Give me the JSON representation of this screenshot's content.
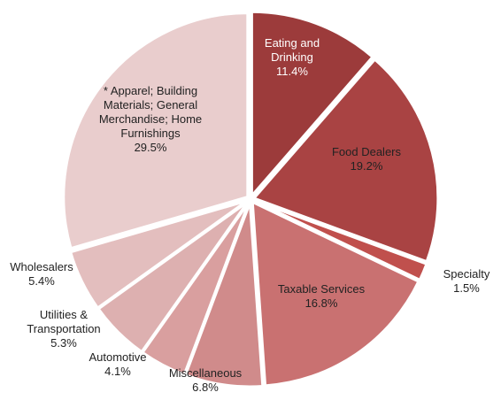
{
  "chart_data": {
    "type": "pie",
    "categories": [
      "Eating and Drinking",
      "Food Dealers",
      "Specialty",
      "Taxable Services",
      "Miscellaneous",
      "Automotive",
      "Utilities & Transportation",
      "Wholesalers",
      "* Apparel; Building Materials; General Merchandise; Home Furnishings"
    ],
    "values": [
      11.4,
      19.2,
      1.5,
      16.8,
      6.8,
      4.1,
      5.3,
      5.4,
      29.5
    ],
    "value_labels": [
      "11.4%",
      "19.2%",
      "1.5%",
      "16.8%",
      "6.8%",
      "4.1%",
      "5.3%",
      "5.4%",
      "29.5%"
    ],
    "colors": [
      "#9c3b3b",
      "#a94343",
      "#c0504d",
      "#c97171",
      "#d08b8b",
      "#d99f9f",
      "#ddb0b0",
      "#e3bebe",
      "#e9cdcd"
    ]
  }
}
